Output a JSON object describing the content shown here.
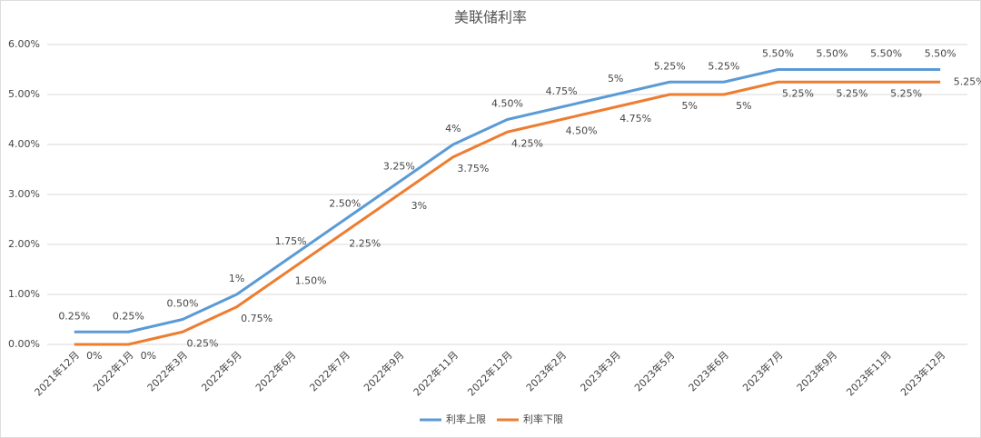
{
  "chart_data": {
    "type": "line",
    "title": "美联储利率",
    "categories": [
      "2021年12月",
      "2022年1月",
      "2022年3月",
      "2022年5月",
      "2022年6月",
      "2022年7月",
      "2022年9月",
      "2022年11月",
      "2022年12月",
      "2023年2月",
      "2023年3月",
      "2023年5月",
      "2023年6月",
      "2023年7月",
      "2023年9月",
      "2023年11月",
      "2023年12月"
    ],
    "series": [
      {
        "name": "利率上限",
        "color": "#5b9bd5",
        "values": [
          0.25,
          0.25,
          0.5,
          1,
          1.75,
          2.5,
          3.25,
          4,
          4.5,
          4.75,
          5,
          5.25,
          5.25,
          5.5,
          5.5,
          5.5,
          5.5
        ],
        "value_labels": [
          "0.25%",
          "0.25%",
          "0.50%",
          "1%",
          "1.75%",
          "2.50%",
          "3.25%",
          "4%",
          "4.50%",
          "4.75%",
          "5%",
          "5.25%",
          "5.25%",
          "5.50%",
          "5.50%",
          "5.50%",
          "5.50%"
        ]
      },
      {
        "name": "利率下限",
        "color": "#ed7d31",
        "values": [
          0,
          0,
          0.25,
          0.75,
          1.5,
          2.25,
          3,
          3.75,
          4.25,
          4.5,
          4.75,
          5,
          5,
          5.25,
          5.25,
          5.25,
          5.25
        ],
        "value_labels": [
          "0%",
          "0%",
          "0.25%",
          "0.75%",
          "1.50%",
          "2.25%",
          "3%",
          "3.75%",
          "4.25%",
          "4.50%",
          "4.75%",
          "5%",
          "5%",
          "5.25%",
          "5.25%",
          "5.25%",
          "5.25%"
        ]
      }
    ],
    "ylim": [
      0,
      6
    ],
    "yticks": [
      {
        "value": 0,
        "label": "0.00%"
      },
      {
        "value": 1,
        "label": "1.00%"
      },
      {
        "value": 2,
        "label": "2.00%"
      },
      {
        "value": 3,
        "label": "3.00%"
      },
      {
        "value": 4,
        "label": "4.00%"
      },
      {
        "value": 5,
        "label": "5.00%"
      },
      {
        "value": 6,
        "label": "6.00%"
      }
    ],
    "grid": true,
    "legend": "bottom"
  }
}
